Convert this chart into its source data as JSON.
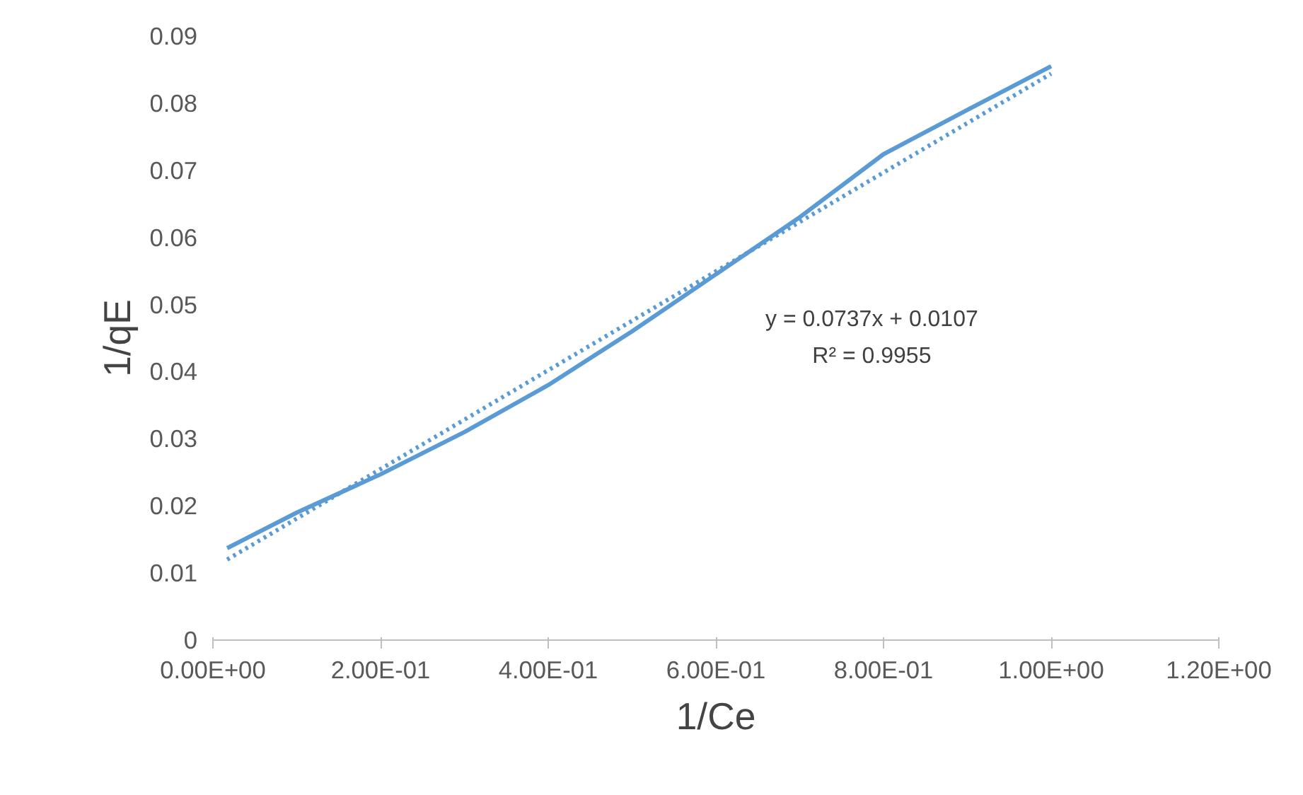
{
  "chart_data": {
    "type": "line",
    "xlabel": "1/Ce",
    "ylabel": "1/qE",
    "xlim": [
      0,
      1.2
    ],
    "ylim": [
      0,
      0.09
    ],
    "xticks": [
      {
        "value": 0,
        "label": "0.00E+00"
      },
      {
        "value": 0.2,
        "label": "2.00E-01"
      },
      {
        "value": 0.4,
        "label": "4.00E-01"
      },
      {
        "value": 0.6,
        "label": "6.00E-01"
      },
      {
        "value": 0.8,
        "label": "8.00E-01"
      },
      {
        "value": 1.0,
        "label": "1.00E+00"
      },
      {
        "value": 1.2,
        "label": "1.20E+00"
      }
    ],
    "yticks": [
      0,
      0.01,
      0.02,
      0.03,
      0.04,
      0.05,
      0.06,
      0.07,
      0.08,
      0.09
    ],
    "grid": false,
    "marker": "none",
    "series": [
      {
        "color": "#5b9bd5",
        "line_style": "solid",
        "x": [
          0.017,
          0.1,
          0.2,
          0.3,
          0.4,
          0.5,
          0.6,
          0.7,
          0.8,
          0.9,
          1.0
        ],
        "values": [
          0.0137,
          0.019,
          0.0247,
          0.031,
          0.038,
          0.046,
          0.0545,
          0.063,
          0.0724,
          0.079,
          0.0855
        ]
      },
      {
        "color": "#5b9bd5",
        "line_style": "dotted",
        "x": [
          0.017,
          1.0
        ],
        "values": [
          0.012,
          0.0844
        ]
      }
    ],
    "annotations": [
      "y = 0.0737x + 0.0107",
      "R² = 0.9955"
    ]
  }
}
